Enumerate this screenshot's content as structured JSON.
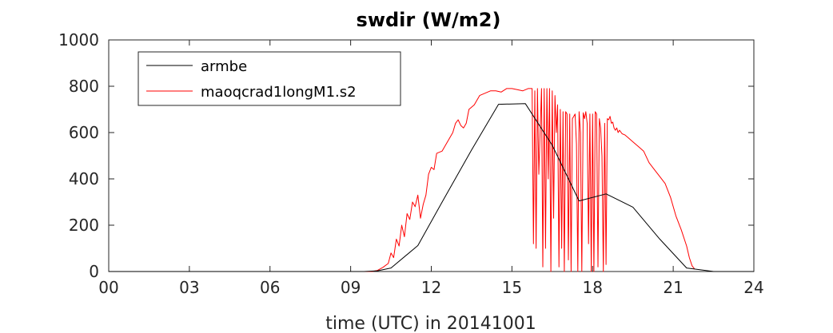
{
  "chart_data": {
    "type": "line",
    "title": "swdir  (W/m2)",
    "xlabel": "time (UTC) in 20141001",
    "ylabel": "",
    "xlim": [
      0,
      24
    ],
    "ylim": [
      0,
      1000
    ],
    "x_ticks": [
      0,
      3,
      6,
      9,
      12,
      15,
      18,
      21,
      24
    ],
    "x_tick_labels": [
      "00",
      "03",
      "06",
      "09",
      "12",
      "15",
      "18",
      "21",
      "24"
    ],
    "y_ticks": [
      0,
      200,
      400,
      600,
      800,
      1000
    ],
    "y_tick_labels": [
      "0",
      "200",
      "400",
      "600",
      "800",
      "1000"
    ],
    "grid": false,
    "legend_position": "top-left",
    "series": [
      {
        "name": "armbe",
        "color": "#000000",
        "x": [
          0,
          9.5,
          10,
          10.5,
          11.5,
          12.5,
          13.5,
          14.5,
          15.5,
          16.5,
          17.5,
          18.5,
          19.5,
          20.5,
          21.5,
          22.5,
          24
        ],
        "y": [
          0,
          0,
          3,
          15,
          112,
          320,
          525,
          722,
          725,
          545,
          305,
          335,
          278,
          140,
          15,
          0,
          0
        ]
      },
      {
        "name": "maoqcrad1longM1.s2",
        "color": "#ff0000",
        "x": [
          0,
          9.8,
          10.0,
          10.2,
          10.4,
          10.5,
          10.6,
          10.7,
          10.8,
          10.9,
          11.0,
          11.1,
          11.2,
          11.3,
          11.4,
          11.5,
          11.6,
          11.7,
          11.8,
          11.9,
          12.0,
          12.1,
          12.2,
          12.4,
          12.6,
          12.8,
          12.9,
          13.0,
          13.1,
          13.2,
          13.3,
          13.4,
          13.6,
          13.8,
          14.0,
          14.2,
          14.4,
          14.6,
          14.8,
          15.0,
          15.2,
          15.4,
          15.6,
          15.75,
          15.8,
          15.85,
          15.9,
          15.95,
          16.0,
          16.05,
          16.1,
          16.15,
          16.2,
          16.25,
          16.3,
          16.35,
          16.4,
          16.45,
          16.5,
          16.55,
          16.6,
          16.65,
          16.7,
          16.75,
          16.8,
          16.85,
          16.9,
          16.95,
          17.0,
          17.05,
          17.1,
          17.15,
          17.2,
          17.25,
          17.3,
          17.35,
          17.4,
          17.45,
          17.5,
          17.55,
          17.6,
          17.65,
          17.7,
          17.75,
          17.8,
          17.85,
          17.9,
          17.95,
          18.0,
          18.05,
          18.1,
          18.15,
          18.2,
          18.25,
          18.3,
          18.35,
          18.4,
          18.45,
          18.5,
          18.55,
          18.6,
          18.65,
          18.7,
          18.75,
          18.8,
          18.85,
          18.9,
          18.95,
          19.0,
          19.1,
          19.2,
          19.3,
          19.5,
          19.7,
          19.9,
          20.1,
          20.3,
          20.5,
          20.7,
          20.9,
          21.1,
          21.3,
          21.5,
          21.6,
          21.7,
          21.8
        ],
        "y": [
          0,
          0,
          5,
          18,
          35,
          80,
          60,
          140,
          110,
          200,
          150,
          250,
          225,
          300,
          280,
          330,
          230,
          290,
          330,
          420,
          450,
          440,
          510,
          520,
          560,
          600,
          640,
          655,
          630,
          620,
          640,
          700,
          720,
          760,
          770,
          780,
          780,
          775,
          790,
          790,
          785,
          780,
          790,
          790,
          120,
          780,
          100,
          790,
          420,
          610,
          790,
          20,
          790,
          100,
          790,
          400,
          790,
          0,
          780,
          230,
          760,
          600,
          720,
          20,
          700,
          100,
          690,
          0,
          690,
          680,
          50,
          680,
          0,
          660,
          670,
          680,
          550,
          0,
          690,
          600,
          0,
          685,
          660,
          690,
          640,
          120,
          680,
          0,
          680,
          0,
          690,
          680,
          20,
          660,
          620,
          500,
          0,
          640,
          30,
          660,
          655,
          670,
          640,
          645,
          620,
          610,
          620,
          600,
          610,
          595,
          590,
          580,
          560,
          540,
          520,
          470,
          440,
          410,
          380,
          320,
          240,
          180,
          110,
          60,
          25,
          10
        ]
      }
    ]
  }
}
